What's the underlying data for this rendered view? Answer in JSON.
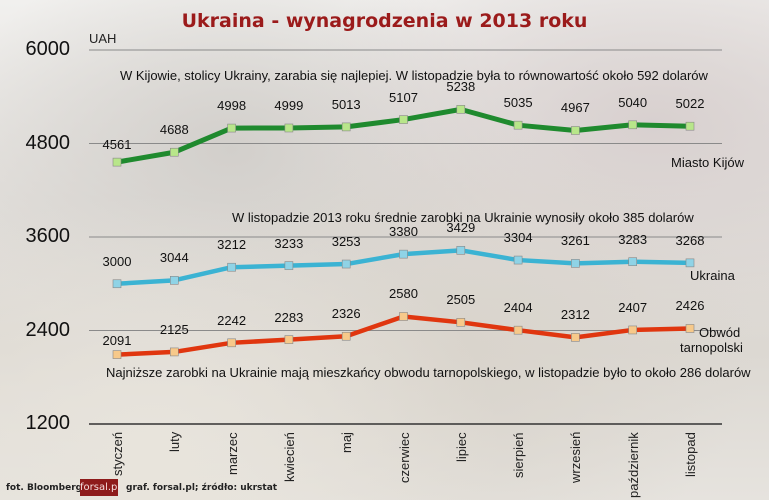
{
  "header": {
    "title": "Ukraina - wynagrodzenia w 2013 roku",
    "unit": "UAH"
  },
  "footer": {
    "photo_credit": "fot. Bloomberg",
    "logo": "forsal.pl",
    "source": "graf. forsal.pl;  źródło: ukrstat"
  },
  "annotations": {
    "kyiv": "W Kijowie, stolicy Ukrainy, zarabia się najlepiej. W listopadzie była to równowartość około 592 dolarów",
    "ukraine": "W listopadzie 2013 roku średnie zarobki na Ukrainie wynosiły około 385 dolarów",
    "ternopil": "Najniższe zarobki na Ukrainie mają mieszkańcy obwodu tarnopolskiego, w listopadzie było to około 286 dolarów"
  },
  "series_labels": {
    "kyiv": "Miasto Kijów",
    "ukraine": "Ukraina",
    "ternopil_line1": "Obwód",
    "ternopil_line2": "tarnopolski"
  },
  "colors": {
    "kyiv_line": "#1f8a2e",
    "kyiv_marker": "#b8e68a",
    "ukraine_line": "#3bb3d3",
    "ukraine_marker": "#8fd3e6",
    "ternopil_line": "#e0360f",
    "ternopil_marker": "#f7c98a",
    "title": "#9b1b1b"
  },
  "chart_data": {
    "type": "line",
    "title": "Ukraina - wynagrodzenia w 2013 roku",
    "xlabel": "",
    "ylabel": "UAH",
    "ylim": [
      1200,
      6000
    ],
    "yticks": [
      1200,
      2400,
      3600,
      4800,
      6000
    ],
    "grid": "horizontal",
    "legend_position": "inline-right",
    "categories": [
      "styczeń",
      "luty",
      "marzec",
      "kwiecień",
      "maj",
      "czerwiec",
      "lipiec",
      "sierpień",
      "wrzesień",
      "październik",
      "listopad"
    ],
    "series": [
      {
        "name": "Miasto Kijów",
        "values": [
          4561,
          4688,
          4998,
          4999,
          5013,
          5107,
          5238,
          5035,
          4967,
          5040,
          5022
        ]
      },
      {
        "name": "Ukraina",
        "values": [
          3000,
          3044,
          3212,
          3233,
          3253,
          3380,
          3429,
          3304,
          3261,
          3283,
          3268
        ]
      },
      {
        "name": "Obwód tarnopolski",
        "values": [
          2091,
          2125,
          2242,
          2283,
          2326,
          2580,
          2505,
          2404,
          2312,
          2407,
          2426
        ]
      }
    ]
  }
}
